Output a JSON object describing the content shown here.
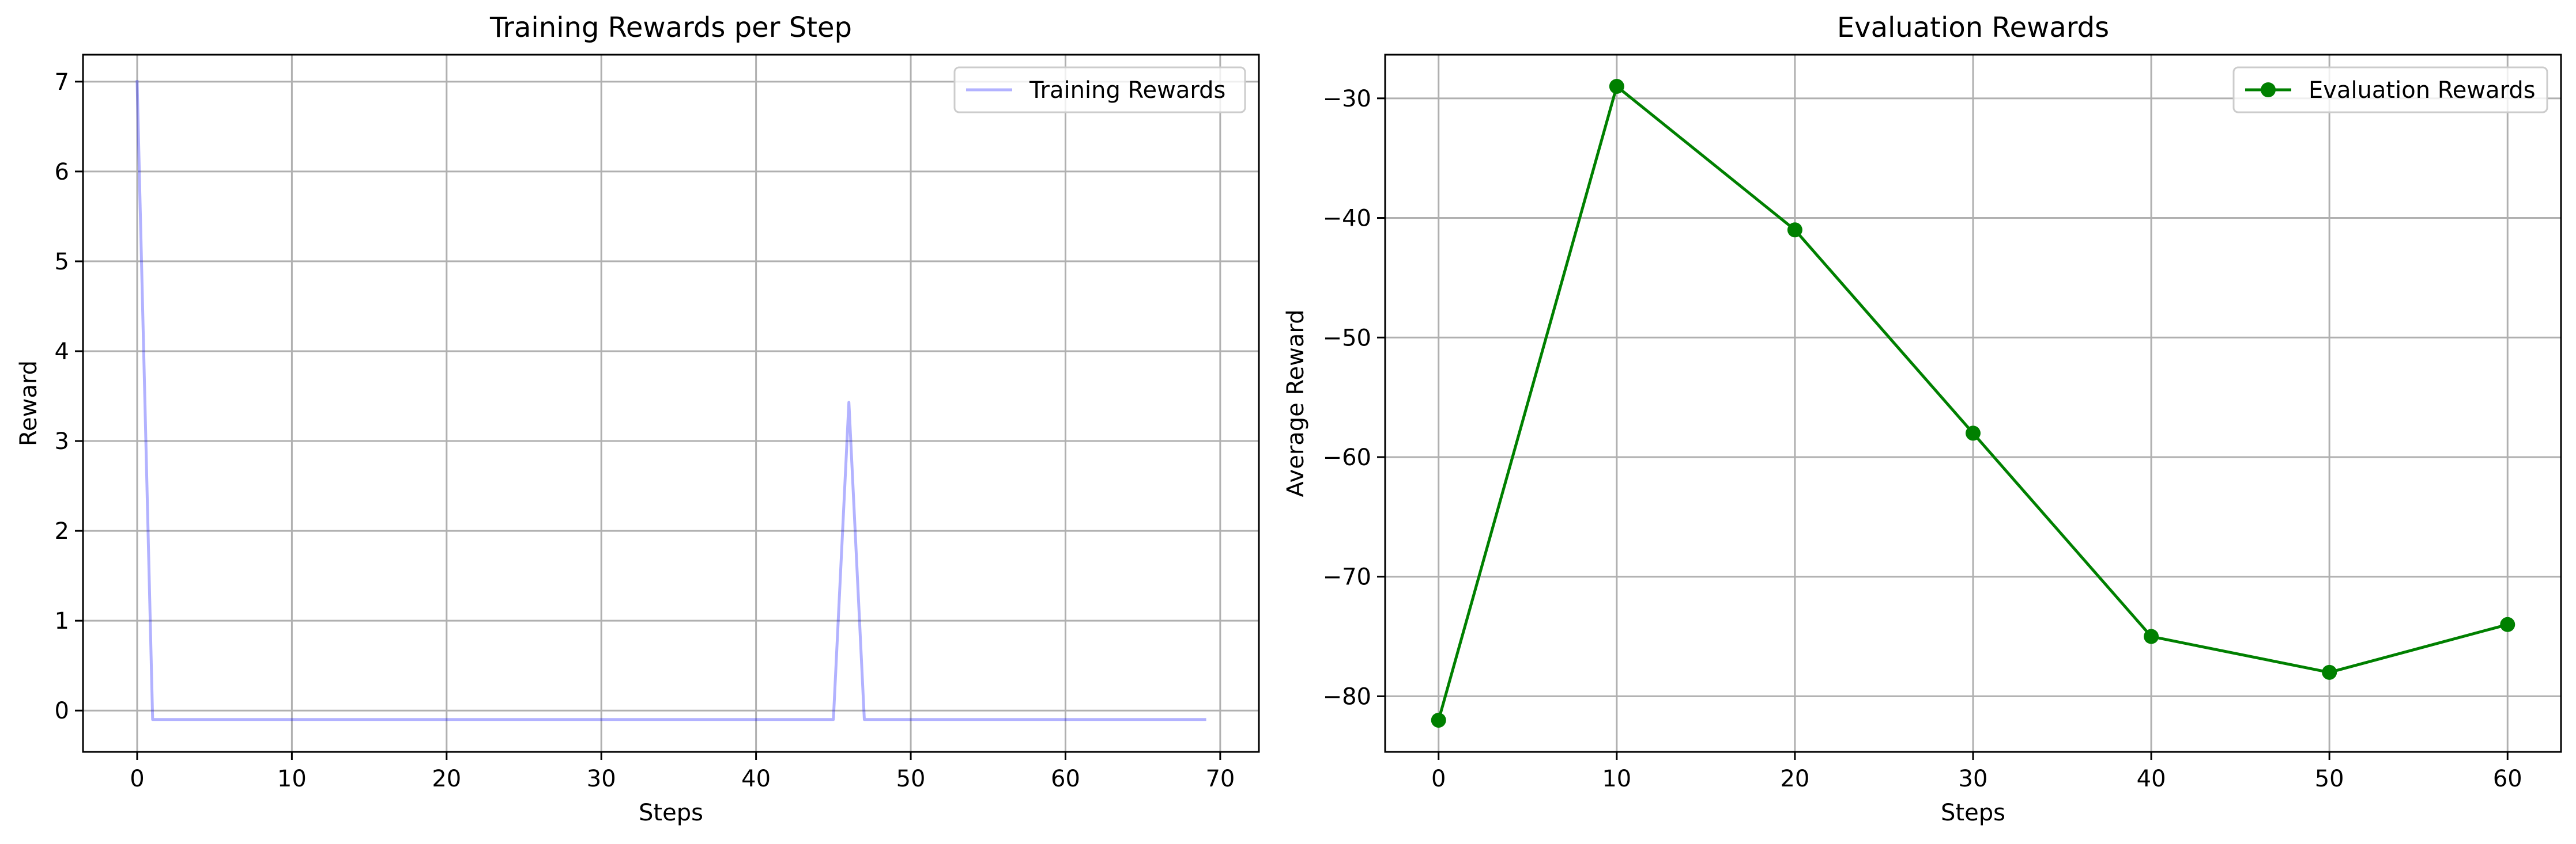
{
  "chart_data": [
    {
      "type": "line",
      "title": "Training Rewards per Step",
      "xlabel": "Steps",
      "ylabel": "Reward",
      "xlim": [
        -3.5,
        72.5
      ],
      "ylim": [
        -0.46,
        7.3
      ],
      "xticks": [
        0,
        10,
        20,
        30,
        40,
        50,
        60,
        70
      ],
      "yticks": [
        0,
        1,
        2,
        3,
        4,
        5,
        6,
        7
      ],
      "grid": true,
      "legend_position": "upper right",
      "series": [
        {
          "name": "Training Rewards",
          "color": "#0000ff",
          "opacity": 0.3,
          "markers": false,
          "x": [
            0,
            1,
            2,
            3,
            4,
            5,
            6,
            7,
            8,
            9,
            10,
            11,
            12,
            13,
            14,
            15,
            16,
            17,
            18,
            19,
            20,
            21,
            22,
            23,
            24,
            25,
            26,
            27,
            28,
            29,
            30,
            31,
            32,
            33,
            34,
            35,
            36,
            37,
            38,
            39,
            40,
            41,
            42,
            43,
            44,
            45,
            46,
            47,
            48,
            49,
            50,
            51,
            52,
            53,
            54,
            55,
            56,
            57,
            58,
            59,
            60,
            61,
            62,
            63,
            64,
            65,
            66,
            67,
            68,
            69
          ],
          "values": [
            7,
            -0.1,
            -0.1,
            -0.1,
            -0.1,
            -0.1,
            -0.1,
            -0.1,
            -0.1,
            -0.1,
            -0.1,
            -0.1,
            -0.1,
            -0.1,
            -0.1,
            -0.1,
            -0.1,
            -0.1,
            -0.1,
            -0.1,
            -0.1,
            -0.1,
            -0.1,
            -0.1,
            -0.1,
            -0.1,
            -0.1,
            -0.1,
            -0.1,
            -0.1,
            -0.1,
            -0.1,
            -0.1,
            -0.1,
            -0.1,
            -0.1,
            -0.1,
            -0.1,
            -0.1,
            -0.1,
            -0.1,
            -0.1,
            -0.1,
            -0.1,
            -0.1,
            -0.1,
            3.43,
            -0.1,
            -0.1,
            -0.1,
            -0.1,
            -0.1,
            -0.1,
            -0.1,
            -0.1,
            -0.1,
            -0.1,
            -0.1,
            -0.1,
            -0.1,
            -0.1,
            -0.1,
            -0.1,
            -0.1,
            -0.1,
            -0.1,
            -0.1,
            -0.1,
            -0.1,
            -0.1
          ]
        }
      ]
    },
    {
      "type": "line",
      "title": "Evaluation Rewards",
      "xlabel": "Steps",
      "ylabel": "Average Reward",
      "xlim": [
        -3,
        63
      ],
      "ylim": [
        -84.65,
        -26.35
      ],
      "xticks": [
        0,
        10,
        20,
        30,
        40,
        50,
        60
      ],
      "yticks": [
        -80,
        -70,
        -60,
        -50,
        -40,
        -30
      ],
      "ytick_labels": [
        "−80",
        "−70",
        "−60",
        "−50",
        "−40",
        "−30"
      ],
      "grid": true,
      "legend_position": "upper right",
      "series": [
        {
          "name": "Evaluation Rewards",
          "color": "#008000",
          "opacity": 1,
          "markers": true,
          "x": [
            0,
            10,
            20,
            30,
            40,
            50,
            60
          ],
          "values": [
            -82,
            -29,
            -41,
            -58,
            -75,
            -78,
            -74
          ]
        }
      ]
    }
  ]
}
